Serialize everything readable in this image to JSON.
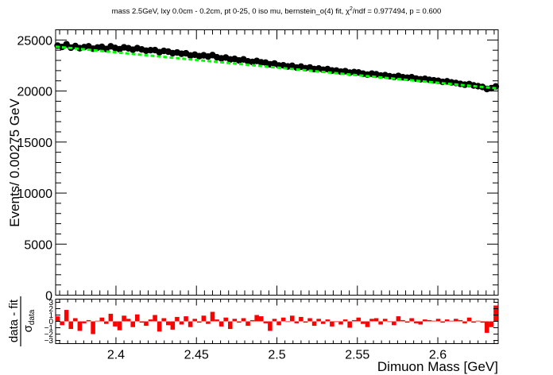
{
  "chart_data": [
    {
      "type": "scatter",
      "title": "mass 2.5GeV, lxy 0.0cm - 0.2cm, pt 0-25, 0 iso mu, bernstein_o(4) fit, χ²/ndf = 0.977494, p = 0.600",
      "title_parts": {
        "pre": "mass 2.5GeV, lxy 0.0cm - 0.2cm, pt 0-25, 0 iso mu, bernstein_o(4) fit, ",
        "chi": "χ",
        "sup": "2",
        "post": "/ndf = 0.977494, p = 0.600"
      },
      "ylabel": "Events/ 0.00275 GeV",
      "xlim": [
        2.3625,
        2.6375
      ],
      "ylim": [
        0,
        26000
      ],
      "yticks": [
        0,
        5000,
        10000,
        15000,
        20000,
        25000
      ],
      "ytick_labels": [
        "0",
        "5000",
        "10000",
        "15000",
        "20000",
        "25000"
      ],
      "grid": false,
      "series": [
        {
          "color": "#000000",
          "marker": "circle",
          "x_start": 2.36375,
          "x_step": 0.00275,
          "n": 100,
          "y": [
            24450,
            24320,
            24580,
            24250,
            24410,
            24200,
            24300,
            24380,
            24150,
            24260,
            24330,
            24120,
            24380,
            24220,
            24100,
            24280,
            24190,
            24050,
            24200,
            24080,
            23950,
            24000,
            24010,
            23800,
            23930,
            23860,
            23710,
            23780,
            23650,
            23700,
            23480,
            23560,
            23420,
            23500,
            23380,
            23520,
            23310,
            23200,
            23280,
            23090,
            23150,
            23000,
            23100,
            22910,
            22850,
            22950,
            22810,
            22780,
            22620,
            22700,
            22500,
            22520,
            22410,
            22470,
            22300,
            22390,
            22240,
            22310,
            22150,
            22210,
            22080,
            22150,
            22010,
            22000,
            21900,
            21950,
            21800,
            21860,
            21820,
            21700,
            21610,
            21700,
            21640,
            21520,
            21560,
            21450,
            21380,
            21480,
            21350,
            21300,
            21350,
            21220,
            21150,
            21200,
            21100,
            21050,
            21000,
            20900,
            20950,
            20850,
            20790,
            20700,
            20620,
            20680,
            20550,
            20480,
            20400,
            20200,
            20280,
            20450
          ]
        },
        {
          "color": "#00ff00",
          "marker": "dashed-line",
          "y_start": 24350,
          "y_end": 20250
        }
      ]
    },
    {
      "type": "bar",
      "ylabel_num": "data - fit",
      "ylabel_den_sym": "σ",
      "ylabel_den_sub": "data",
      "xlabel": "Dimuon Mass [GeV]",
      "xlim": [
        2.3625,
        2.6375
      ],
      "ylim": [
        -3.5,
        3.5
      ],
      "yticks": [
        -3,
        -2,
        -1,
        0,
        1,
        2,
        3
      ],
      "ytick_labels": [
        "−3",
        "−2",
        "−1",
        "0",
        "1",
        "2",
        "3"
      ],
      "xticks": [
        2.4,
        2.45,
        2.5,
        2.55,
        2.6
      ],
      "xtick_labels": [
        "2.4",
        "2.45",
        "2.5",
        "2.55",
        "2.6"
      ],
      "color": "#ff0000",
      "x_start": 2.36375,
      "x_step": 0.00275,
      "values": [
        0.8,
        -0.6,
        1.8,
        -1.2,
        0.5,
        -1.5,
        -0.3,
        0.2,
        -2.0,
        0.1,
        0.6,
        -0.4,
        1.2,
        -0.8,
        -1.4,
        0.9,
        0.4,
        -0.9,
        1.1,
        -0.2,
        -0.7,
        0.3,
        1.0,
        -1.6,
        0.5,
        -0.6,
        -1.3,
        0.7,
        -0.5,
        0.8,
        -0.9,
        0.4,
        -0.2,
        0.9,
        -0.4,
        1.5,
        0.3,
        -0.8,
        0.6,
        -1.2,
        0.4,
        -0.2,
        0.5,
        -0.7,
        0.2,
        1.0,
        0.8,
        -0.3,
        -1.5,
        0.4,
        -0.6,
        0.6,
        -0.1,
        0.9,
        -0.3,
        0.7,
        -0.2,
        0.5,
        -0.7,
        0.4,
        -0.4,
        0.3,
        -0.8,
        -0.1,
        -0.5,
        0.3,
        -1.0,
        0.2,
        0.6,
        -0.4,
        -0.9,
        0.4,
        0.5,
        -0.5,
        0.4,
        -0.1,
        -0.6,
        0.8,
        0.2,
        -0.2,
        0.5,
        -0.3,
        -0.5,
        0.3,
        0.2,
        0.1,
        0.4,
        -0.2,
        0.3,
        0.1,
        0.4,
        0.2,
        -0.3,
        0.6,
        -0.2,
        0.1,
        -0.2,
        -1.8,
        -0.9,
        2.5
      ]
    }
  ]
}
